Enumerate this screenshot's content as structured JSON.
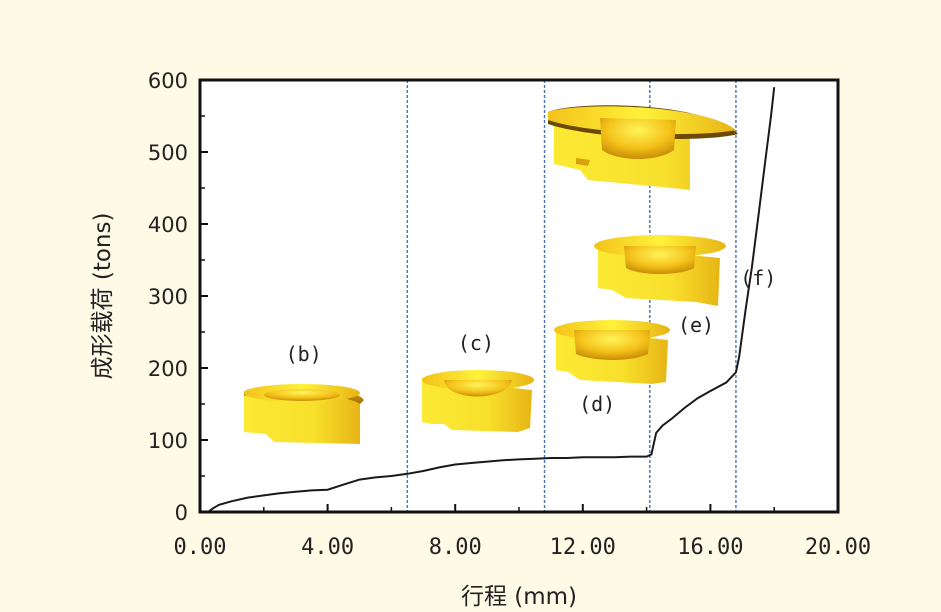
{
  "chart_data": {
    "type": "line",
    "title": "",
    "xlabel": "行程 (mm)",
    "ylabel": "成形载荷 (tons)",
    "xlim": [
      0,
      20
    ],
    "ylim": [
      0,
      600
    ],
    "x_ticks": [
      {
        "value": 0,
        "label": "0.00"
      },
      {
        "value": 4,
        "label": "4.00"
      },
      {
        "value": 8,
        "label": "8.00"
      },
      {
        "value": 12,
        "label": "12.00"
      },
      {
        "value": 16,
        "label": "16.00"
      },
      {
        "value": 20,
        "label": "20.00"
      }
    ],
    "y_ticks": [
      {
        "value": 0,
        "label": "0"
      },
      {
        "value": 100,
        "label": "100"
      },
      {
        "value": 200,
        "label": "200"
      },
      {
        "value": 300,
        "label": "300"
      },
      {
        "value": 400,
        "label": "400"
      },
      {
        "value": 500,
        "label": "500"
      },
      {
        "value": 600,
        "label": "600"
      }
    ],
    "series": [
      {
        "name": "成形载荷",
        "x": [
          0.25,
          0.4,
          0.6,
          1.0,
          1.5,
          2.0,
          2.5,
          3.0,
          3.5,
          4.0,
          4.5,
          5.0,
          5.5,
          6.0,
          6.5,
          7.0,
          7.5,
          8.0,
          8.5,
          9.0,
          9.5,
          10.0,
          10.5,
          11.0,
          11.5,
          12.0,
          12.5,
          13.0,
          13.5,
          14.0,
          14.15,
          14.3,
          14.5,
          14.8,
          15.2,
          15.6,
          16.0,
          16.5,
          16.8,
          16.9,
          17.1,
          17.3,
          17.5,
          17.7,
          17.9,
          18.0
        ],
        "y": [
          0,
          5,
          10,
          15,
          20,
          23,
          26,
          28,
          30,
          31,
          38,
          45,
          48,
          50,
          53,
          57,
          62,
          66,
          68,
          70,
          72,
          73,
          74,
          75,
          75,
          76,
          76,
          76,
          77,
          77,
          80,
          110,
          120,
          130,
          145,
          158,
          168,
          180,
          194,
          215,
          280,
          340,
          410,
          480,
          550,
          590
        ]
      }
    ],
    "stage_boundaries": [
      6.5,
      10.8,
      14.1,
      16.8
    ],
    "stage_labels": [
      {
        "text": "(b)",
        "x": 3.25,
        "y": 210
      },
      {
        "text": "(c)",
        "x": 8.65,
        "y": 225
      },
      {
        "text": "(d)",
        "x": 12.45,
        "y": 140
      },
      {
        "text": "(e)",
        "x": 15.55,
        "y": 250
      },
      {
        "text": "(f)",
        "x": 17.5,
        "y": 315
      }
    ],
    "legend": "none",
    "grid": false
  },
  "colors": {
    "background": "#FDFAE6",
    "plot_background": "#FFFFFF",
    "line": "#1A1A1A",
    "boundary": "#4A73B0",
    "part_light": "#FFF23A",
    "part_mid": "#F7D21E",
    "part_dark": "#E2A90F",
    "part_shadow": "#B07A07"
  }
}
